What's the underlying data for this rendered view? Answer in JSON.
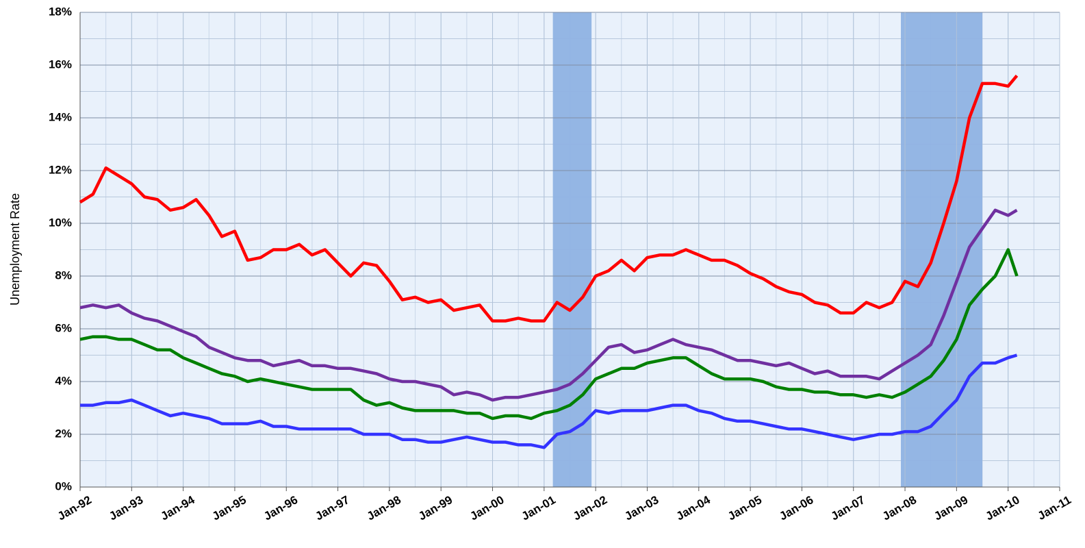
{
  "chart_data": {
    "type": "line",
    "y_label": "Unemployment Rate",
    "x": [
      1992,
      1992.25,
      1992.5,
      1992.75,
      1993,
      1993.25,
      1993.5,
      1993.75,
      1994,
      1994.25,
      1994.5,
      1994.75,
      1995,
      1995.25,
      1995.5,
      1995.75,
      1996,
      1996.25,
      1996.5,
      1996.75,
      1997,
      1997.25,
      1997.5,
      1997.75,
      1998,
      1998.25,
      1998.5,
      1998.75,
      1999,
      1999.25,
      1999.5,
      1999.75,
      2000,
      2000.25,
      2000.5,
      2000.75,
      2001,
      2001.25,
      2001.5,
      2001.75,
      2002,
      2002.25,
      2002.5,
      2002.75,
      2003,
      2003.25,
      2003.5,
      2003.75,
      2004,
      2004.25,
      2004.5,
      2004.75,
      2005,
      2005.25,
      2005.5,
      2005.75,
      2006,
      2006.25,
      2006.5,
      2006.75,
      2007,
      2007.25,
      2007.5,
      2007.75,
      2008,
      2008.25,
      2008.5,
      2008.75,
      2009,
      2009.25,
      2009.5,
      2009.75,
      2010,
      2010.17
    ],
    "series": [
      {
        "color": "#ff0000",
        "values": [
          10.8,
          11.1,
          12.1,
          11.8,
          11.5,
          11.0,
          10.9,
          10.5,
          10.6,
          10.9,
          10.3,
          9.5,
          9.7,
          8.6,
          8.7,
          9.0,
          9.0,
          9.2,
          8.8,
          9.0,
          8.5,
          8.0,
          8.5,
          8.4,
          7.8,
          7.1,
          7.2,
          7.0,
          7.1,
          6.7,
          6.8,
          6.9,
          6.3,
          6.3,
          6.4,
          6.3,
          6.3,
          7.0,
          6.7,
          7.2,
          8.0,
          8.2,
          8.6,
          8.2,
          8.7,
          8.8,
          8.8,
          9.0,
          8.8,
          8.6,
          8.6,
          8.4,
          8.1,
          7.9,
          7.6,
          7.4,
          7.3,
          7.0,
          6.9,
          6.6,
          6.6,
          7.0,
          6.8,
          7.0,
          7.8,
          7.6,
          8.5,
          10.0,
          11.6,
          14.0,
          15.3,
          15.3,
          15.2,
          15.6
        ]
      },
      {
        "color": "#7030a0",
        "values": [
          6.8,
          6.9,
          6.8,
          6.9,
          6.6,
          6.4,
          6.3,
          6.1,
          5.9,
          5.7,
          5.3,
          5.1,
          4.9,
          4.8,
          4.8,
          4.6,
          4.7,
          4.8,
          4.6,
          4.6,
          4.5,
          4.5,
          4.4,
          4.3,
          4.1,
          4.0,
          4.0,
          3.9,
          3.8,
          3.5,
          3.6,
          3.5,
          3.3,
          3.4,
          3.4,
          3.5,
          3.6,
          3.7,
          3.9,
          4.3,
          4.8,
          5.3,
          5.4,
          5.1,
          5.2,
          5.4,
          5.6,
          5.4,
          5.3,
          5.2,
          5.0,
          4.8,
          4.8,
          4.7,
          4.6,
          4.7,
          4.5,
          4.3,
          4.4,
          4.2,
          4.2,
          4.2,
          4.1,
          4.4,
          4.7,
          5.0,
          5.4,
          6.5,
          7.8,
          9.1,
          9.8,
          10.5,
          10.3,
          10.5
        ]
      },
      {
        "color": "#008000",
        "values": [
          5.6,
          5.7,
          5.7,
          5.6,
          5.6,
          5.4,
          5.2,
          5.2,
          4.9,
          4.7,
          4.5,
          4.3,
          4.2,
          4.0,
          4.1,
          4.0,
          3.9,
          3.8,
          3.7,
          3.7,
          3.7,
          3.7,
          3.3,
          3.1,
          3.2,
          3.0,
          2.9,
          2.9,
          2.9,
          2.9,
          2.8,
          2.8,
          2.6,
          2.7,
          2.7,
          2.6,
          2.8,
          2.9,
          3.1,
          3.5,
          4.1,
          4.3,
          4.5,
          4.5,
          4.7,
          4.8,
          4.9,
          4.9,
          4.6,
          4.3,
          4.1,
          4.1,
          4.1,
          4.0,
          3.8,
          3.7,
          3.7,
          3.6,
          3.6,
          3.5,
          3.5,
          3.4,
          3.5,
          3.4,
          3.6,
          3.9,
          4.2,
          4.8,
          5.6,
          6.9,
          7.5,
          8.0,
          9.0,
          8.0
        ]
      },
      {
        "color": "#3333ff",
        "values": [
          3.1,
          3.1,
          3.2,
          3.2,
          3.3,
          3.1,
          2.9,
          2.7,
          2.8,
          2.7,
          2.6,
          2.4,
          2.4,
          2.4,
          2.5,
          2.3,
          2.3,
          2.2,
          2.2,
          2.2,
          2.2,
          2.2,
          2.0,
          2.0,
          2.0,
          1.8,
          1.8,
          1.7,
          1.7,
          1.8,
          1.9,
          1.8,
          1.7,
          1.7,
          1.6,
          1.6,
          1.5,
          2.0,
          2.1,
          2.4,
          2.9,
          2.8,
          2.9,
          2.9,
          2.9,
          3.0,
          3.1,
          3.1,
          2.9,
          2.8,
          2.6,
          2.5,
          2.5,
          2.4,
          2.3,
          2.2,
          2.2,
          2.1,
          2.0,
          1.9,
          1.8,
          1.9,
          2.0,
          2.0,
          2.1,
          2.1,
          2.3,
          2.8,
          3.3,
          4.2,
          4.7,
          4.7,
          4.9,
          5.0
        ]
      }
    ],
    "shaded_periods": [
      {
        "start": 2001.17,
        "end": 2001.92,
        "color": "#8fb2e3"
      },
      {
        "start": 2007.92,
        "end": 2009.5,
        "color": "#8fb2e3"
      }
    ],
    "xlim": [
      1992,
      2011
    ],
    "xticks": [
      {
        "value": 1992,
        "label": "Jan-92"
      },
      {
        "value": 1993,
        "label": "Jan-93"
      },
      {
        "value": 1994,
        "label": "Jan-94"
      },
      {
        "value": 1995,
        "label": "Jan-95"
      },
      {
        "value": 1996,
        "label": "Jan-96"
      },
      {
        "value": 1997,
        "label": "Jan-97"
      },
      {
        "value": 1998,
        "label": "Jan-98"
      },
      {
        "value": 1999,
        "label": "Jan-99"
      },
      {
        "value": 2000,
        "label": "Jan-00"
      },
      {
        "value": 2001,
        "label": "Jan-01"
      },
      {
        "value": 2002,
        "label": "Jan-02"
      },
      {
        "value": 2003,
        "label": "Jan-03"
      },
      {
        "value": 2004,
        "label": "Jan-04"
      },
      {
        "value": 2005,
        "label": "Jan-05"
      },
      {
        "value": 2006,
        "label": "Jan-06"
      },
      {
        "value": 2007,
        "label": "Jan-07"
      },
      {
        "value": 2008,
        "label": "Jan-08"
      },
      {
        "value": 2009,
        "label": "Jan-09"
      },
      {
        "value": 2010,
        "label": "Jan-10"
      },
      {
        "value": 2011,
        "label": "Jan-11"
      }
    ],
    "ylim": [
      0,
      18
    ],
    "yticks": [
      {
        "value": 0,
        "label": "0%"
      },
      {
        "value": 2,
        "label": "2%"
      },
      {
        "value": 4,
        "label": "4%"
      },
      {
        "value": 6,
        "label": "6%"
      },
      {
        "value": 8,
        "label": "8%"
      },
      {
        "value": 10,
        "label": "10%"
      },
      {
        "value": 12,
        "label": "12%"
      },
      {
        "value": 14,
        "label": "14%"
      },
      {
        "value": 16,
        "label": "16%"
      },
      {
        "value": 18,
        "label": "18%"
      }
    ],
    "grid": true
  }
}
